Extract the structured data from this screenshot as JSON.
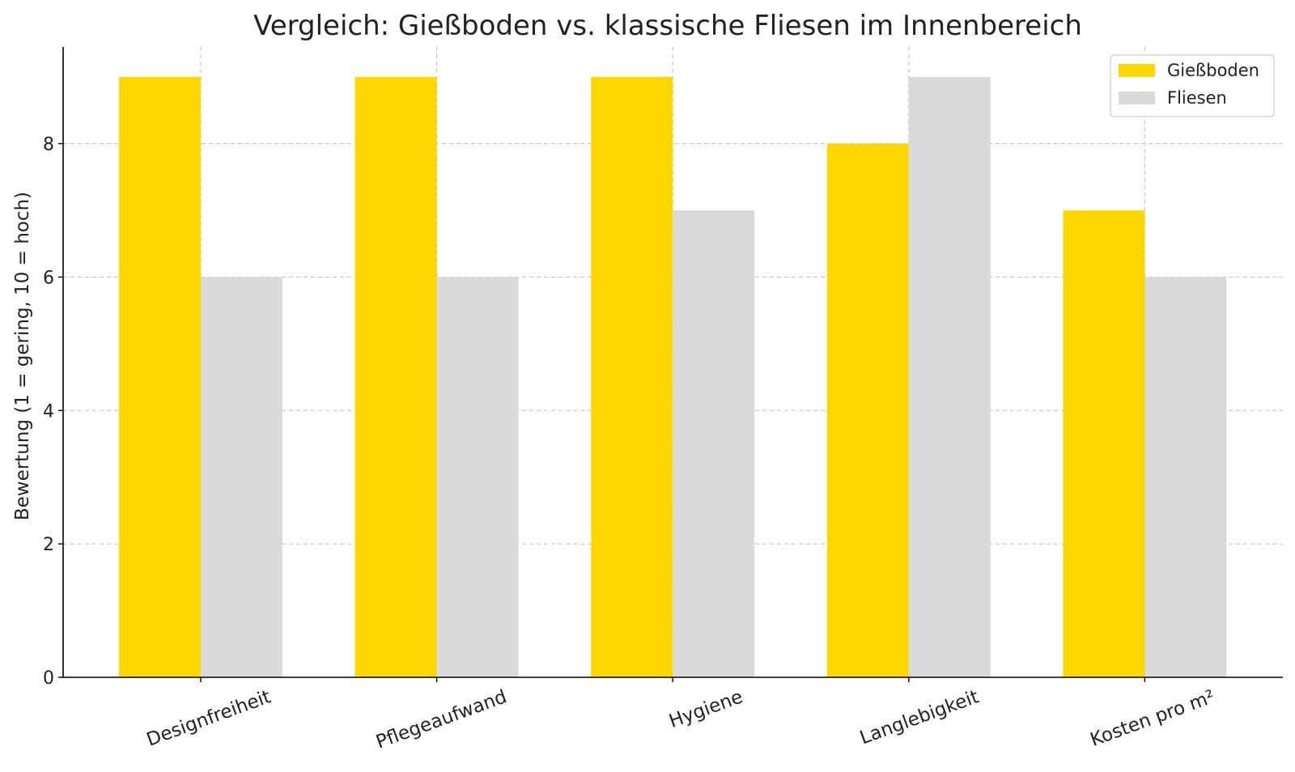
{
  "chart_data": {
    "type": "bar",
    "title": "Vergleich: Gießboden vs. klassische Fliesen im Innenbereich",
    "xlabel": "",
    "ylabel": "Bewertung (1 = gering, 10 = hoch)",
    "categories": [
      "Designfreiheit",
      "Pflegeaufwand",
      "Hygiene",
      "Langlebigkeit",
      "Kosten pro m²"
    ],
    "series": [
      {
        "name": "Gießboden",
        "values": [
          9,
          9,
          9,
          8,
          7
        ],
        "color": "#FFD700"
      },
      {
        "name": "Fliesen",
        "values": [
          6,
          6,
          7,
          9,
          6
        ],
        "color": "#DAD9DC"
      }
    ],
    "ylim": [
      0,
      9.45
    ],
    "yticks": [
      0,
      2,
      4,
      6,
      8
    ],
    "grid": true,
    "legend_position": "top-right"
  }
}
